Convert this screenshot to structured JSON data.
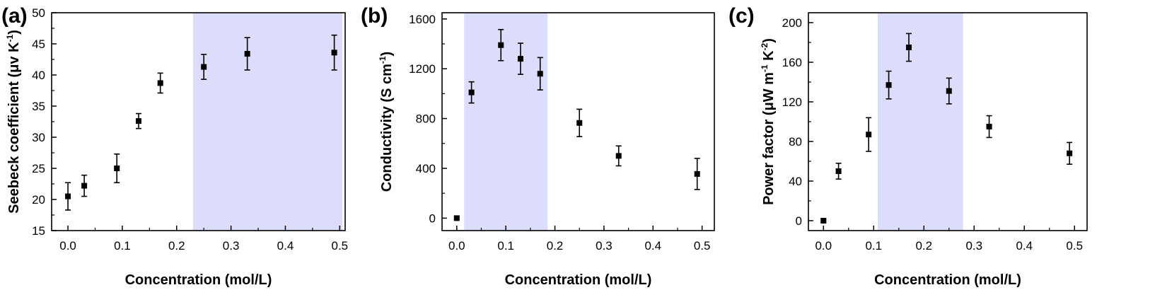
{
  "chart_data": [
    {
      "type": "scatter",
      "panel_label": "(a)",
      "xlabel": "Concentration (mol/L)",
      "ylabel": "Seebeck coefficient (μv K",
      "ylabel_sup": "-1",
      "ylabel_tail": ")",
      "xlim": [
        -0.03,
        0.51
      ],
      "ylim": [
        15,
        50
      ],
      "xticks": [
        0.0,
        0.1,
        0.2,
        0.3,
        0.4,
        0.5
      ],
      "xtick_labels": [
        "0.0",
        "0.1",
        "0.2",
        "0.3",
        "0.4",
        "0.5"
      ],
      "yticks": [
        15,
        20,
        25,
        30,
        35,
        40,
        45,
        50
      ],
      "ytick_labels": [
        "15",
        "20",
        "25",
        "30",
        "35",
        "40",
        "45",
        "50"
      ],
      "highlight_range": [
        0.23,
        0.505
      ],
      "highlight_color": "#dcdcfb",
      "marker_color": "#000000",
      "x": [
        0.0,
        0.03,
        0.09,
        0.13,
        0.17,
        0.25,
        0.33,
        0.49
      ],
      "y": [
        20.5,
        22.2,
        25.0,
        32.6,
        38.7,
        41.3,
        43.4,
        43.6
      ],
      "yerr": [
        2.2,
        1.7,
        2.3,
        1.2,
        1.6,
        2.0,
        2.6,
        2.8
      ]
    },
    {
      "type": "scatter",
      "panel_label": "(b)",
      "xlabel": "Concentration (mol/L)",
      "ylabel": "Conductivity (S cm",
      "ylabel_sup": "-1",
      "ylabel_tail": ")",
      "xlim": [
        -0.03,
        0.525
      ],
      "ylim": [
        -100,
        1650
      ],
      "xticks": [
        0.0,
        0.1,
        0.2,
        0.3,
        0.4,
        0.5
      ],
      "xtick_labels": [
        "0.0",
        "0.1",
        "0.2",
        "0.3",
        "0.4",
        "0.5"
      ],
      "yticks": [
        0,
        400,
        800,
        1200,
        1600
      ],
      "ytick_labels": [
        "0",
        "400",
        "800",
        "1200",
        "1600"
      ],
      "highlight_range": [
        0.015,
        0.185
      ],
      "highlight_color": "#dcdcfb",
      "marker_color": "#000000",
      "x": [
        0.0,
        0.03,
        0.09,
        0.13,
        0.17,
        0.25,
        0.33,
        0.49
      ],
      "y": [
        0,
        1010,
        1390,
        1280,
        1160,
        765,
        500,
        355
      ],
      "yerr": [
        10,
        85,
        125,
        125,
        130,
        110,
        80,
        125
      ]
    },
    {
      "type": "scatter",
      "panel_label": "(c)",
      "xlabel": "Concentration (mol/L)",
      "ylabel": "Power factor (μW m",
      "ylabel_sup": "-1",
      "ylabel_mid": " K",
      "ylabel_sup2": "-2",
      "ylabel_tail": ")",
      "xlim": [
        -0.03,
        0.525
      ],
      "ylim": [
        -10,
        210
      ],
      "xticks": [
        0.0,
        0.1,
        0.2,
        0.3,
        0.4,
        0.5
      ],
      "xtick_labels": [
        "0.0",
        "0.1",
        "0.2",
        "0.3",
        "0.4",
        "0.5"
      ],
      "yticks": [
        0,
        40,
        80,
        120,
        160,
        200
      ],
      "ytick_labels": [
        "0",
        "40",
        "80",
        "120",
        "160",
        "200"
      ],
      "highlight_range": [
        0.108,
        0.278
      ],
      "highlight_color": "#dcdcfb",
      "marker_color": "#000000",
      "x": [
        0.0,
        0.03,
        0.09,
        0.13,
        0.17,
        0.25,
        0.33,
        0.49
      ],
      "y": [
        0,
        50,
        87,
        137,
        175,
        131,
        95,
        68
      ],
      "yerr": [
        1.5,
        8,
        17,
        14,
        14,
        13,
        11,
        11
      ]
    }
  ]
}
